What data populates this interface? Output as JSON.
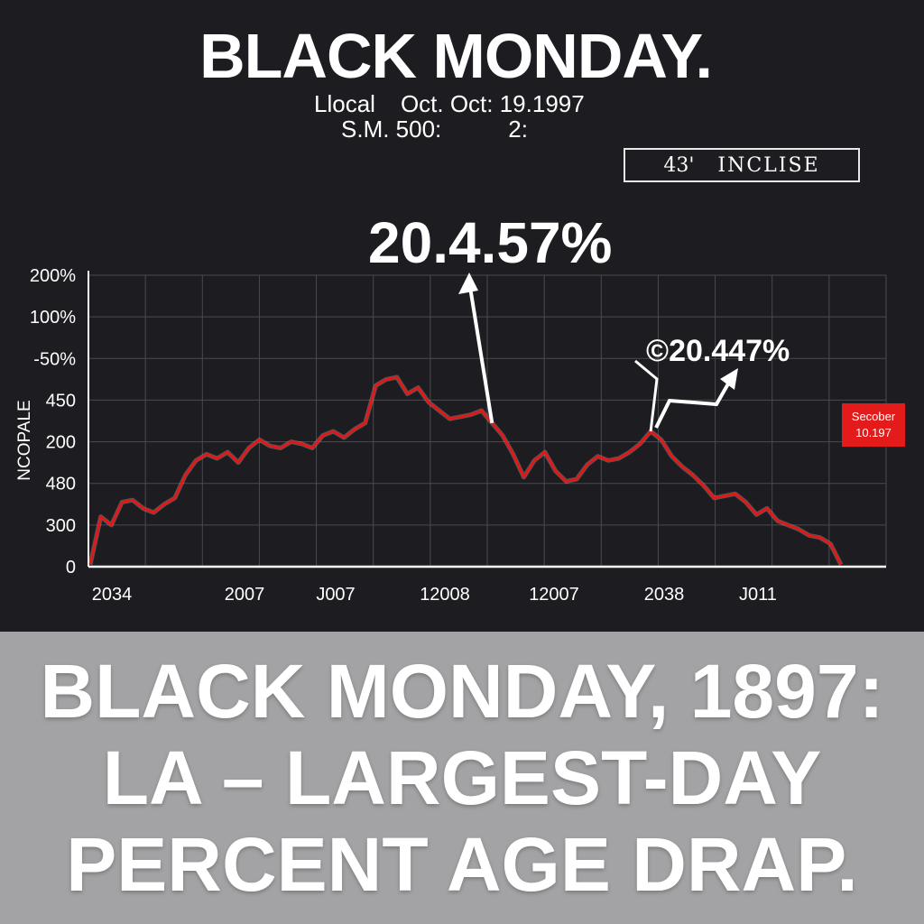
{
  "header": {
    "title": "BLACK MONDAY.",
    "subtitle_line1": [
      "Llocal",
      "Oct. Oct: 19.1997"
    ],
    "subtitle_line2": [
      "S.M. 500:",
      "2:"
    ],
    "box_label": {
      "number": "43'",
      "text": "INCLISE"
    }
  },
  "annotations": {
    "primary": "20.4.57%",
    "secondary": "20.447%",
    "secondary_prefix": "©"
  },
  "side_tag": {
    "line1": "Secober",
    "line2": "10.197"
  },
  "headline": {
    "lines": [
      "BLACK MONDAY, 1897:",
      "LA – LARGEST-DAY",
      "PERCENT AGE DRAP."
    ]
  },
  "colors": {
    "series": "#e01818",
    "background": "#1d1d21",
    "grid": "#4a4a50",
    "banner": "#a3a3a5"
  },
  "chart_data": {
    "type": "line",
    "ylabel": "NCOPALE",
    "yticks": [
      "0",
      "300",
      "480",
      "200",
      "450",
      "-50%",
      "100%",
      "200%"
    ],
    "xticks": [
      "2034",
      "2007",
      "J007",
      "12008",
      "12007",
      "2038",
      "J011"
    ],
    "grid": true,
    "series": [
      {
        "values": [
          0.05,
          1.2,
          1.0,
          1.55,
          1.6,
          1.4,
          1.3,
          1.5,
          1.65,
          2.2,
          2.55,
          2.7,
          2.6,
          2.75,
          2.5,
          2.85,
          3.05,
          2.9,
          2.85,
          3.0,
          2.95,
          2.85,
          3.15,
          3.25,
          3.1,
          3.3,
          3.45,
          4.35,
          4.5,
          4.55,
          4.15,
          4.3,
          3.95,
          3.75,
          3.55,
          3.6,
          3.65,
          3.75,
          3.45,
          3.15,
          2.7,
          2.15,
          2.55,
          2.75,
          2.3,
          2.05,
          2.1,
          2.45,
          2.65,
          2.55,
          2.6,
          2.75,
          2.95,
          3.25,
          3.05,
          2.65,
          2.4,
          2.2,
          1.95,
          1.65,
          1.7,
          1.75,
          1.55,
          1.25,
          1.4,
          1.1,
          1.0,
          0.9,
          0.75,
          0.7,
          0.55,
          0.05
        ]
      }
    ],
    "callouts": [
      {
        "label": "20.4.57%",
        "series_index": 38
      },
      {
        "label": "20.447%",
        "series_index": 53
      }
    ]
  }
}
